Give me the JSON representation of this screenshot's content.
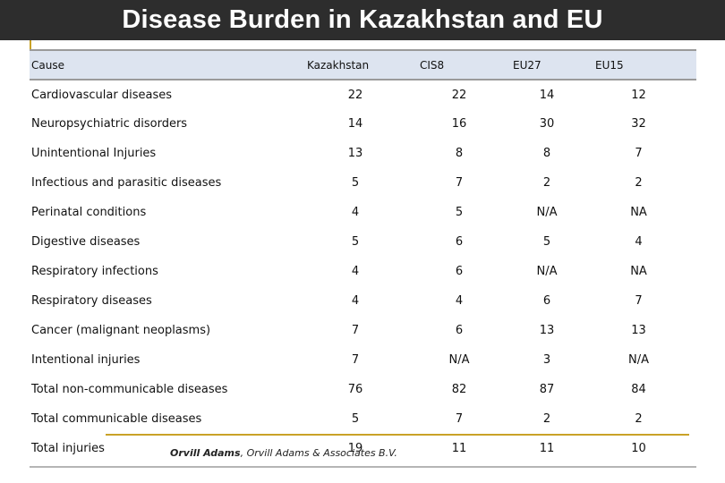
{
  "title": "Disease Burden in Kazakhstan and EU",
  "table": {
    "headers": [
      "Cause",
      "Kazakhstan",
      "CIS8",
      "EU27",
      "EU15"
    ],
    "rows": [
      [
        "Cardiovascular diseases",
        "22",
        "22",
        "14",
        "12"
      ],
      [
        "Neuropsychiatric disorders",
        "14",
        "16",
        "30",
        "32"
      ],
      [
        "Unintentional Injuries",
        "13",
        "8",
        "8",
        "7"
      ],
      [
        "Infectious and parasitic diseases",
        "5",
        "7",
        "2",
        "2"
      ],
      [
        "Perinatal conditions",
        "4",
        "5",
        "N/A",
        "NA"
      ],
      [
        "Digestive diseases",
        "5",
        "6",
        "5",
        "4"
      ],
      [
        "Respiratory infections",
        "4",
        "6",
        "N/A",
        "NA"
      ],
      [
        "Respiratory diseases",
        "4",
        "4",
        "6",
        "7"
      ],
      [
        "Cancer (malignant neoplasms)",
        "7",
        "6",
        "13",
        "13"
      ],
      [
        "Intentional injuries",
        "7",
        "N/A",
        "3",
        "N/A"
      ],
      [
        "Total non-communicable diseases",
        "76",
        "82",
        "87",
        "84"
      ],
      [
        "Total communicable diseases",
        "5",
        "7",
        "2",
        "2"
      ],
      [
        "Total injuries",
        "19",
        "11",
        "11",
        "10"
      ]
    ]
  },
  "footer": {
    "author": "Orvill Adams",
    "affiliation": ", Orvill Adams & Associates B.V."
  }
}
